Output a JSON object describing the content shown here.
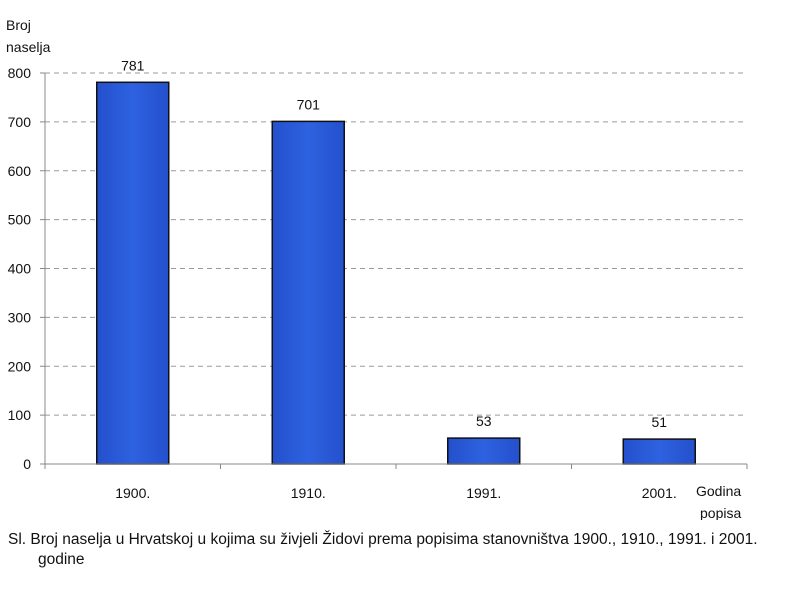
{
  "chart_data": {
    "type": "bar",
    "categories": [
      "1900.",
      "1910.",
      "1991.",
      "2001."
    ],
    "values": [
      781,
      701,
      53,
      51
    ],
    "data_labels": [
      "781",
      "701",
      "53",
      "51"
    ],
    "ylabel": [
      "Broj",
      "naselja"
    ],
    "xlabel": [
      "Godina",
      "popisa"
    ],
    "ylim": [
      0,
      800
    ],
    "yticks": [
      0,
      100,
      200,
      300,
      400,
      500,
      600,
      700,
      800
    ],
    "grid": "horizontal dashed",
    "bar_color": "#2a5ad8",
    "legend": "none"
  },
  "caption": {
    "line1": "Sl.  Broj naselja u Hrvatskoj u kojima su živjeli Židovi prema popisima stanovništva 1900., 1910., 1991. i 2001.",
    "line2": "godine"
  }
}
